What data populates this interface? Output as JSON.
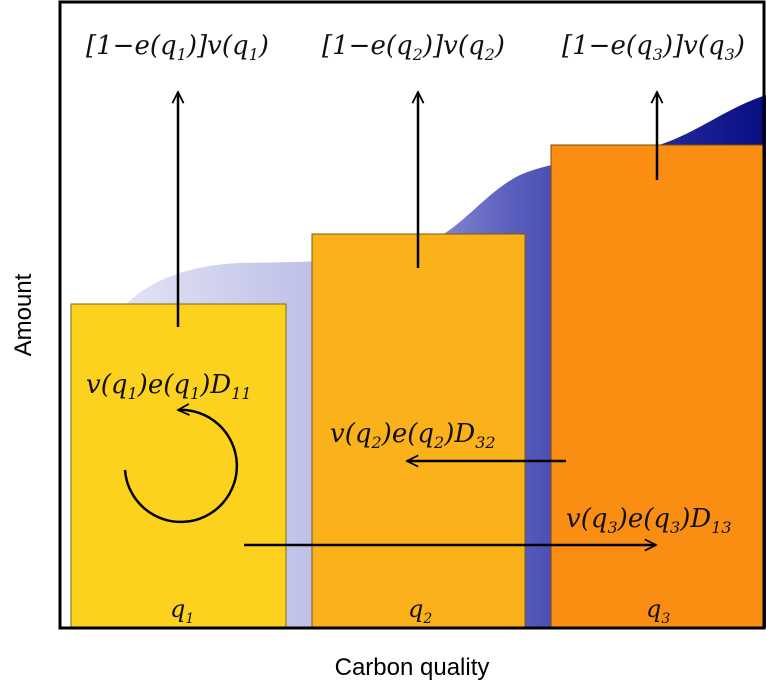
{
  "axes": {
    "x_label": "Carbon quality",
    "y_label": "Amount"
  },
  "colors": {
    "bar_q1": "#fdd21f",
    "bar_q2": "#fbb21a",
    "bar_q3": "#fa8e12",
    "wave_light": "#cfd1ef",
    "wave_mid": "#6c6fc4",
    "wave_dark": "#0a0f86",
    "stroke": "#000000"
  },
  "bars": [
    {
      "id": "q1",
      "base": "q",
      "sub": "1"
    },
    {
      "id": "q2",
      "base": "q",
      "sub": "2"
    },
    {
      "id": "q3",
      "base": "q",
      "sub": "3"
    }
  ],
  "top_labels": [
    {
      "pre": "[1−e(q",
      "sub": "1",
      "mid": ")]v(q",
      "sub2": "1",
      "post": ")"
    },
    {
      "pre": "[1−e(q",
      "sub": "2",
      "mid": ")]v(q",
      "sub2": "2",
      "post": ")"
    },
    {
      "pre": "[1−e(q",
      "sub": "3",
      "mid": ")]v(q",
      "sub2": "3",
      "post": ")"
    }
  ],
  "flow_labels": {
    "d11": {
      "a": "v(q",
      "s1": "1",
      "b": ")e(q",
      "s2": "1",
      "c": ")D",
      "s3": "11"
    },
    "d32": {
      "a": "v(q",
      "s1": "2",
      "b": ")e(q",
      "s2": "2",
      "c": ")D",
      "s3": "32"
    },
    "d13": {
      "a": "v(q",
      "s1": "3",
      "b": ")e(q",
      "s2": "3",
      "c": ")D",
      "s3": "13"
    }
  }
}
